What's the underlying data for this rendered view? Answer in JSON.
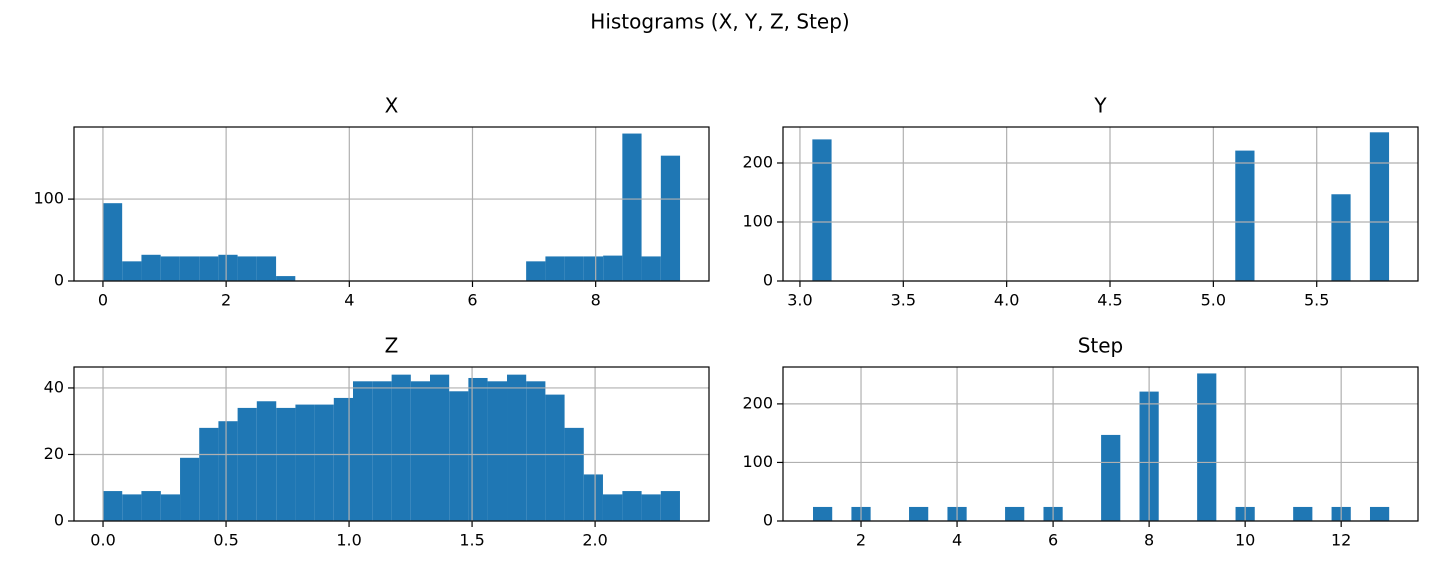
{
  "title": "Histograms (X, Y, Z, Step)",
  "chart_data": [
    {
      "type": "histogram",
      "title": "X",
      "color": "#1f77b4",
      "grid": true,
      "bins": [
        0,
        0.312,
        0.625,
        0.937,
        1.249,
        1.562,
        1.874,
        2.186,
        2.499,
        2.811,
        3.123,
        3.436,
        3.748,
        4.06,
        4.373,
        4.685,
        4.997,
        5.31,
        5.622,
        5.934,
        6.247,
        6.559,
        6.871,
        7.184,
        7.496,
        7.808,
        8.121,
        8.433,
        8.745,
        9.058,
        9.37
      ],
      "values": [
        95,
        24,
        32,
        30,
        30,
        30,
        32,
        30,
        30,
        6,
        0,
        0,
        0,
        0,
        0,
        0,
        0,
        0,
        0,
        0,
        0,
        0,
        24,
        30,
        30,
        30,
        31,
        180,
        30,
        153
      ],
      "xlim": [
        -0.47,
        9.84
      ],
      "xticks": [
        0,
        2,
        4,
        6,
        8
      ],
      "ylim": [
        0,
        188
      ],
      "yticks": [
        0,
        100
      ]
    },
    {
      "type": "histogram",
      "title": "Y",
      "color": "#1f77b4",
      "grid": true,
      "bins": [
        3.06,
        3.153,
        3.246,
        3.339,
        3.432,
        3.525,
        3.618,
        3.711,
        3.804,
        3.897,
        3.99,
        4.083,
        4.176,
        4.269,
        4.362,
        4.455,
        4.548,
        4.641,
        4.734,
        4.827,
        4.92,
        5.013,
        5.106,
        5.199,
        5.292,
        5.385,
        5.478,
        5.571,
        5.664,
        5.757,
        5.85
      ],
      "values": [
        240,
        0,
        0,
        0,
        0,
        0,
        0,
        0,
        0,
        0,
        0,
        0,
        0,
        0,
        0,
        0,
        0,
        0,
        0,
        0,
        0,
        0,
        221,
        0,
        0,
        0,
        0,
        147,
        0,
        252
      ],
      "xlim": [
        2.918,
        5.99
      ],
      "xticks": [
        {
          "value": 3,
          "label": "3.0"
        },
        3.5,
        {
          "value": 4,
          "label": "4.0"
        },
        4.5,
        {
          "value": 5,
          "label": "5.0"
        },
        5.5
      ],
      "ylim": [
        0,
        261
      ],
      "yticks": [
        0,
        100,
        200
      ]
    },
    {
      "type": "histogram",
      "title": "Z",
      "color": "#1f77b4",
      "grid": true,
      "bins": [
        0,
        0.078,
        0.156,
        0.235,
        0.313,
        0.391,
        0.469,
        0.547,
        0.625,
        0.704,
        0.782,
        0.86,
        0.938,
        1.016,
        1.094,
        1.173,
        1.251,
        1.329,
        1.407,
        1.485,
        1.563,
        1.642,
        1.72,
        1.798,
        1.876,
        1.954,
        2.032,
        2.111,
        2.189,
        2.267,
        2.345
      ],
      "values": [
        9,
        8,
        9,
        8,
        19,
        28,
        30,
        34,
        36,
        34,
        35,
        35,
        37,
        42,
        42,
        44,
        42,
        44,
        39,
        43,
        42,
        44,
        42,
        38,
        28,
        14,
        8,
        9,
        8,
        9
      ],
      "xlim": [
        -0.118,
        2.463
      ],
      "xticks": [
        {
          "value": 0,
          "label": "0.0"
        },
        0.5,
        {
          "value": 1,
          "label": "1.0"
        },
        1.5,
        {
          "value": 2,
          "label": "2.0"
        }
      ],
      "ylim": [
        0,
        46.3
      ],
      "yticks": [
        0,
        20,
        40
      ]
    },
    {
      "type": "histogram",
      "title": "Step",
      "color": "#1f77b4",
      "grid": true,
      "bins": [
        1,
        1.4,
        1.8,
        2.2,
        2.6,
        3,
        3.4,
        3.8,
        4.2,
        4.6,
        5,
        5.4,
        5.8,
        6.2,
        6.6,
        7,
        7.4,
        7.8,
        8.2,
        8.6,
        9,
        9.4,
        9.8,
        10.2,
        10.6,
        11,
        11.4,
        11.8,
        12.2,
        12.6,
        13
      ],
      "values": [
        24,
        0,
        24,
        0,
        0,
        24,
        0,
        24,
        0,
        0,
        24,
        0,
        24,
        0,
        0,
        147,
        0,
        221,
        0,
        0,
        252,
        0,
        24,
        0,
        0,
        24,
        0,
        24,
        0,
        24
      ],
      "xlim": [
        0.375,
        13.6
      ],
      "xticks": [
        2,
        4,
        6,
        8,
        10,
        12
      ],
      "ylim": [
        0,
        263
      ],
      "yticks": [
        0,
        100,
        200
      ]
    }
  ]
}
